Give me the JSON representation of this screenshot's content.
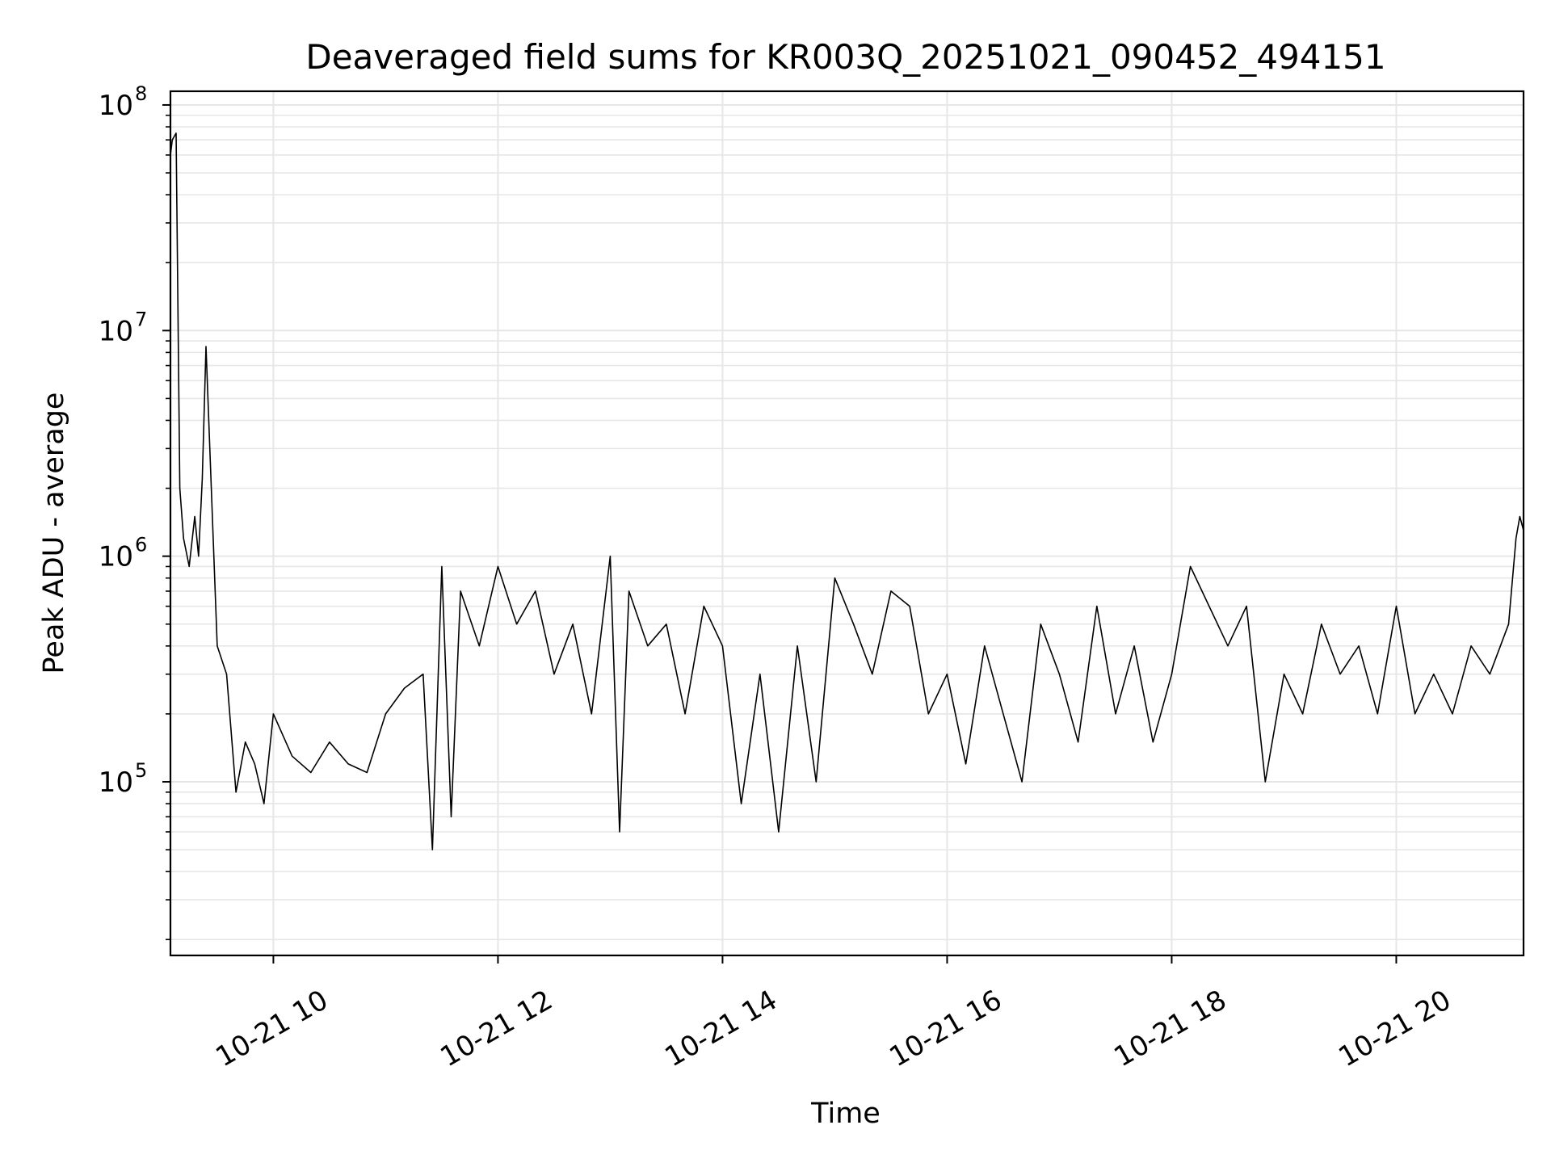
{
  "chart_data": {
    "type": "line",
    "title": "Deaveraged field sums for KR003Q_20251021_090452_494151",
    "xlabel": "Time",
    "ylabel": "Peak ADU - average",
    "y_scale": "log",
    "xlim": [
      "2025-10-21 09:05",
      "2025-10-21 21:08"
    ],
    "ylim": [
      17000,
      115000000
    ],
    "x_ticks": [
      {
        "value": "2025-10-21 10:00",
        "label": "10-21 10"
      },
      {
        "value": "2025-10-21 12:00",
        "label": "10-21 12"
      },
      {
        "value": "2025-10-21 14:00",
        "label": "10-21 14"
      },
      {
        "value": "2025-10-21 16:00",
        "label": "10-21 16"
      },
      {
        "value": "2025-10-21 18:00",
        "label": "10-21 18"
      },
      {
        "value": "2025-10-21 20:00",
        "label": "10-21 20"
      }
    ],
    "y_ticks": [
      {
        "value": 100000,
        "base": "10",
        "exp": "5"
      },
      {
        "value": 1000000,
        "base": "10",
        "exp": "6"
      },
      {
        "value": 10000000,
        "base": "10",
        "exp": "7"
      },
      {
        "value": 100000000,
        "base": "10",
        "exp": "8"
      }
    ],
    "grid": true,
    "line_color": "#000000",
    "grid_color": "#e6e6e6",
    "series": [
      {
        "x": [
          "2025-10-21 09:05",
          "2025-10-21 09:06",
          "2025-10-21 09:08",
          "2025-10-21 09:10",
          "2025-10-21 09:12",
          "2025-10-21 09:15",
          "2025-10-21 09:18",
          "2025-10-21 09:20",
          "2025-10-21 09:22",
          "2025-10-21 09:24",
          "2025-10-21 09:30",
          "2025-10-21 09:35",
          "2025-10-21 09:40",
          "2025-10-21 09:45",
          "2025-10-21 09:50",
          "2025-10-21 09:55",
          "2025-10-21 10:00",
          "2025-10-21 10:10",
          "2025-10-21 10:20",
          "2025-10-21 10:30",
          "2025-10-21 10:40",
          "2025-10-21 10:50",
          "2025-10-21 11:00",
          "2025-10-21 11:10",
          "2025-10-21 11:20",
          "2025-10-21 11:25",
          "2025-10-21 11:30",
          "2025-10-21 11:35",
          "2025-10-21 11:40",
          "2025-10-21 11:50",
          "2025-10-21 12:00",
          "2025-10-21 12:10",
          "2025-10-21 12:20",
          "2025-10-21 12:30",
          "2025-10-21 12:40",
          "2025-10-21 12:50",
          "2025-10-21 13:00",
          "2025-10-21 13:05",
          "2025-10-21 13:10",
          "2025-10-21 13:20",
          "2025-10-21 13:30",
          "2025-10-21 13:40",
          "2025-10-21 13:50",
          "2025-10-21 14:00",
          "2025-10-21 14:10",
          "2025-10-21 14:20",
          "2025-10-21 14:30",
          "2025-10-21 14:40",
          "2025-10-21 14:50",
          "2025-10-21 15:00",
          "2025-10-21 15:10",
          "2025-10-21 15:20",
          "2025-10-21 15:30",
          "2025-10-21 15:40",
          "2025-10-21 15:50",
          "2025-10-21 16:00",
          "2025-10-21 16:10",
          "2025-10-21 16:20",
          "2025-10-21 16:30",
          "2025-10-21 16:40",
          "2025-10-21 16:50",
          "2025-10-21 17:00",
          "2025-10-21 17:10",
          "2025-10-21 17:20",
          "2025-10-21 17:30",
          "2025-10-21 17:40",
          "2025-10-21 17:50",
          "2025-10-21 18:00",
          "2025-10-21 18:10",
          "2025-10-21 18:20",
          "2025-10-21 18:30",
          "2025-10-21 18:40",
          "2025-10-21 18:50",
          "2025-10-21 19:00",
          "2025-10-21 19:10",
          "2025-10-21 19:20",
          "2025-10-21 19:30",
          "2025-10-21 19:40",
          "2025-10-21 19:50",
          "2025-10-21 20:00",
          "2025-10-21 20:10",
          "2025-10-21 20:20",
          "2025-10-21 20:30",
          "2025-10-21 20:40",
          "2025-10-21 20:50",
          "2025-10-21 21:00",
          "2025-10-21 21:04",
          "2025-10-21 21:06",
          "2025-10-21 21:08"
        ],
        "y": [
          60000000,
          70000000,
          75000000,
          2000000,
          1200000,
          900000,
          1500000,
          1000000,
          2200000,
          8500000,
          400000,
          300000,
          90000,
          150000,
          120000,
          80000,
          200000,
          130000,
          110000,
          150000,
          120000,
          110000,
          200000,
          260000,
          300000,
          50000,
          900000,
          70000,
          700000,
          400000,
          900000,
          500000,
          700000,
          300000,
          500000,
          200000,
          1000000,
          60000,
          700000,
          400000,
          500000,
          200000,
          600000,
          400000,
          80000,
          300000,
          60000,
          400000,
          100000,
          800000,
          500000,
          300000,
          700000,
          600000,
          200000,
          300000,
          120000,
          400000,
          200000,
          100000,
          500000,
          300000,
          150000,
          600000,
          200000,
          400000,
          150000,
          300000,
          900000,
          600000,
          400000,
          600000,
          100000,
          300000,
          200000,
          500000,
          300000,
          400000,
          200000,
          600000,
          200000,
          300000,
          200000,
          400000,
          300000,
          500000,
          1200000,
          1500000,
          1300000
        ]
      }
    ]
  }
}
